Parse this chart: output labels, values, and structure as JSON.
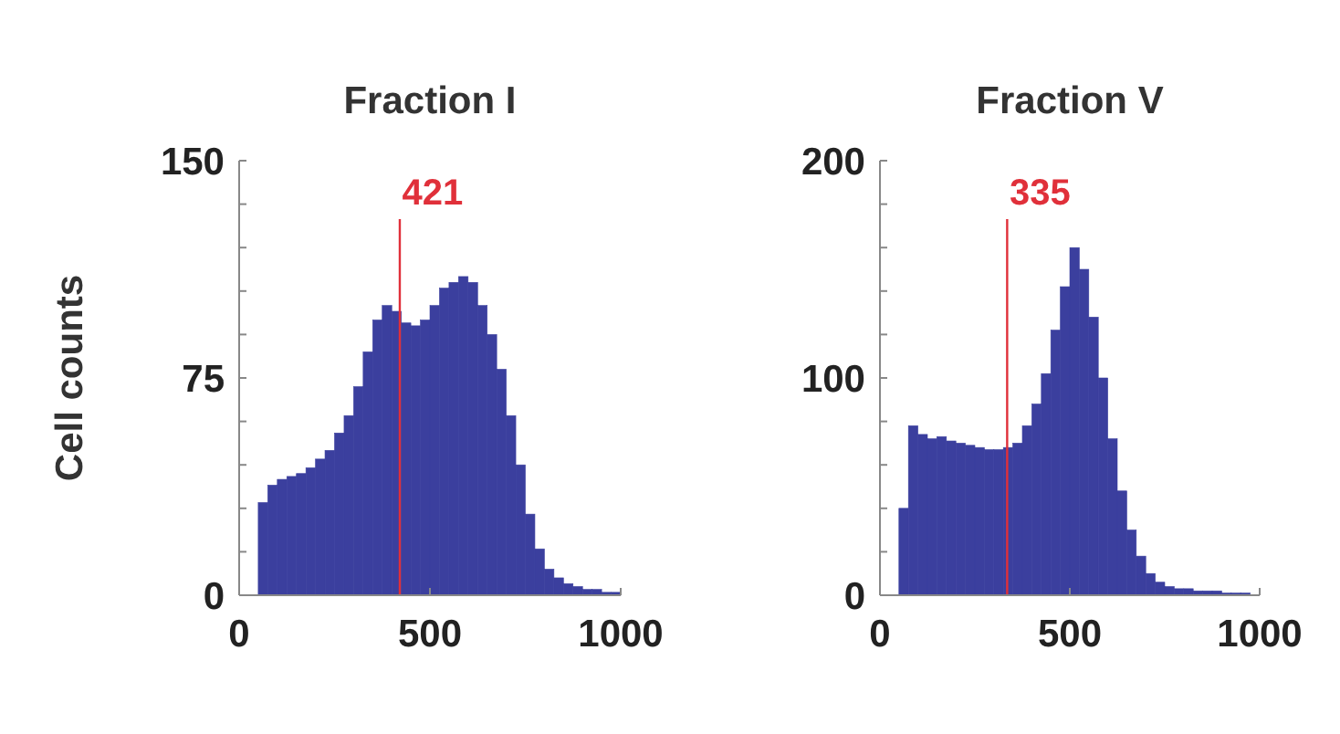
{
  "chart_data": [
    {
      "type": "histogram",
      "title": "Fraction I",
      "ylabel": "Cell counts",
      "color": "#3b3f9e",
      "bins": [
        50,
        75,
        100,
        125,
        150,
        175,
        200,
        225,
        250,
        275,
        300,
        325,
        350,
        375,
        400,
        425,
        450,
        475,
        500,
        525,
        550,
        575,
        600,
        625,
        650,
        675,
        700,
        725,
        750,
        775,
        800,
        825,
        850,
        875,
        900,
        925,
        950,
        975,
        1000
      ],
      "values": [
        32,
        38,
        40,
        41,
        42,
        44,
        47,
        50,
        56,
        62,
        72,
        84,
        95,
        100,
        98,
        94,
        93,
        95,
        100,
        106,
        108,
        110,
        108,
        100,
        90,
        78,
        62,
        45,
        28,
        16,
        9,
        6,
        4,
        3,
        2,
        2,
        1,
        1
      ],
      "xlim": [
        0,
        1000
      ],
      "xticks": [
        0,
        500,
        1000
      ],
      "ylim": [
        0,
        150
      ],
      "yticks": [
        0,
        {
          "value": 15,
          "label": null
        },
        {
          "value": 30,
          "label": null
        },
        {
          "value": 45,
          "label": null
        },
        {
          "value": 60,
          "label": null
        },
        75,
        {
          "value": 90,
          "label": null
        },
        {
          "value": 105,
          "label": null
        },
        {
          "value": 120,
          "label": null
        },
        {
          "value": 135,
          "label": null
        },
        150
      ],
      "ref_lines": [
        {
          "axis": "x",
          "value": 421,
          "label": "421",
          "color": "#e0303a"
        }
      ]
    },
    {
      "type": "histogram",
      "title": "Fraction V",
      "color": "#3b3f9e",
      "bins": [
        50,
        75,
        100,
        125,
        150,
        175,
        200,
        225,
        250,
        275,
        300,
        325,
        350,
        375,
        400,
        425,
        450,
        475,
        500,
        525,
        550,
        575,
        600,
        625,
        650,
        675,
        700,
        725,
        750,
        775,
        800,
        825,
        850,
        875,
        900,
        925,
        950,
        975,
        1000
      ],
      "values": [
        40,
        78,
        74,
        72,
        73,
        71,
        70,
        69,
        68,
        67,
        67,
        68,
        70,
        78,
        88,
        102,
        122,
        142,
        160,
        150,
        128,
        100,
        72,
        48,
        30,
        18,
        10,
        6,
        4,
        3,
        3,
        2,
        2,
        2,
        1,
        1,
        1,
        0
      ],
      "xlim": [
        0,
        1000
      ],
      "xticks": [
        0,
        500,
        1000
      ],
      "ylim": [
        0,
        200
      ],
      "yticks": [
        0,
        {
          "value": 20,
          "label": null
        },
        {
          "value": 40,
          "label": null
        },
        {
          "value": 60,
          "label": null
        },
        {
          "value": 80,
          "label": null
        },
        100,
        {
          "value": 120,
          "label": null
        },
        {
          "value": 140,
          "label": null
        },
        {
          "value": 160,
          "label": null
        },
        {
          "value": 180,
          "label": null
        },
        200
      ],
      "ref_lines": [
        {
          "axis": "x",
          "value": 335,
          "label": "335",
          "color": "#e0303a"
        }
      ]
    }
  ]
}
